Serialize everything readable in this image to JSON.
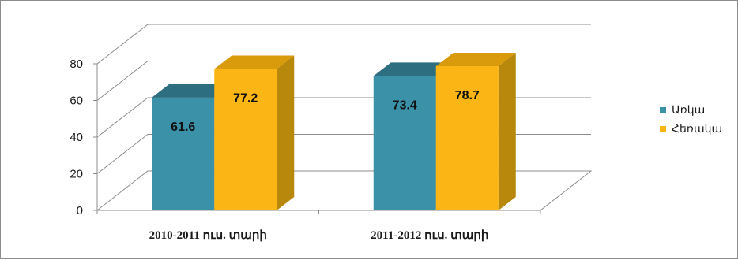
{
  "chart_data": {
    "type": "bar",
    "title": "",
    "xlabel": "",
    "ylabel": "",
    "categories": [
      "2010-2011 ուս. տարի",
      "2011-2012 ուս. տարի"
    ],
    "series": [
      {
        "name": "Առկա",
        "values": [
          61.6,
          73.4
        ],
        "color": "#3a91a8",
        "side_color": "#2a6f83",
        "top_color": "#2d6e80"
      },
      {
        "name": "Հեռակա",
        "values": [
          77.2,
          78.7
        ],
        "color": "#fbb514",
        "side_color": "#b8880c",
        "top_color": "#d99a0c"
      }
    ],
    "data_labels": true,
    "ylim": [
      0,
      80
    ],
    "yticks": [
      0,
      20,
      40,
      60,
      80
    ],
    "grid": true,
    "legend": "right",
    "three_d": true
  }
}
